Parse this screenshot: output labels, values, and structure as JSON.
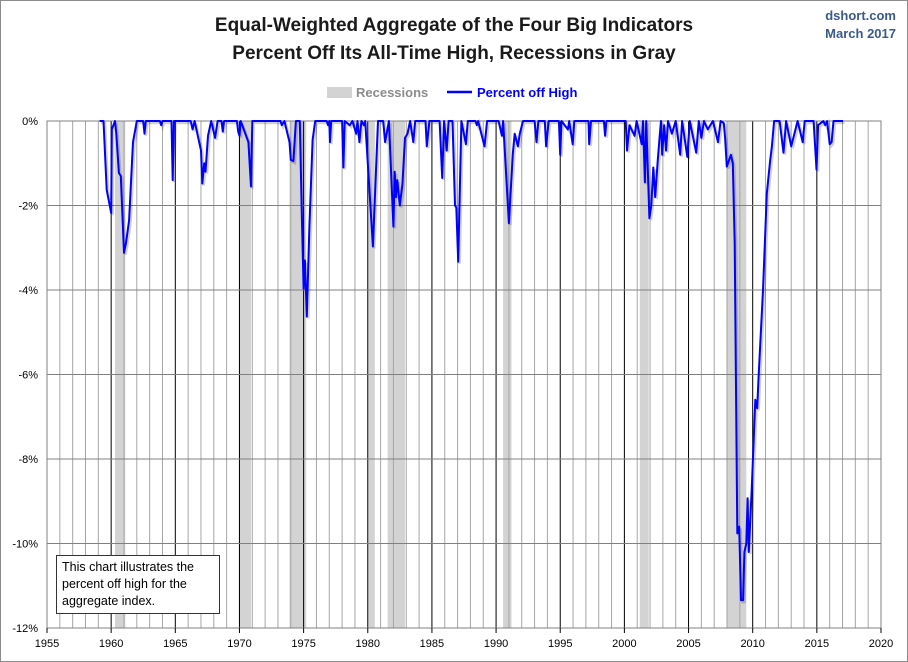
{
  "chart_data": {
    "type": "line",
    "title": "Equal-Weighted Aggregate of the Four Big Indicators",
    "subtitle": "Percent Off Its All-Time High, Recessions in Gray",
    "source": "dshort.com",
    "date": "March 2017",
    "note": "This chart illustrates the percent off high for the aggregate index.",
    "legend": {
      "placement": "top-center",
      "recessions_label": "Recessions",
      "series_label": "Percent off High"
    },
    "colors": {
      "series": "#0000ff",
      "recession": "#d3d3d3",
      "grid": "#a6a6a6",
      "major_grid": "#000000",
      "source": "#3a5a8c"
    },
    "xlim": [
      1955,
      2020
    ],
    "ylim": [
      -12,
      0
    ],
    "x_ticks": [
      1955,
      1960,
      1965,
      1970,
      1975,
      1980,
      1985,
      1990,
      1995,
      2000,
      2005,
      2010,
      2015,
      2020
    ],
    "y_ticks": [
      0,
      -2,
      -4,
      -6,
      -8,
      -10,
      -12
    ],
    "y_tick_labels": [
      "0%",
      "-2%",
      "-4%",
      "-6%",
      "-8%",
      "-10%",
      "-12%"
    ],
    "grid": true,
    "recessions": [
      [
        1960.3,
        1961.1
      ],
      [
        1969.95,
        1970.9
      ],
      [
        1973.9,
        1975.2
      ],
      [
        1980.05,
        1980.55
      ],
      [
        1981.55,
        1982.9
      ],
      [
        1990.55,
        1991.2
      ],
      [
        2001.2,
        2001.9
      ],
      [
        2007.95,
        2009.5
      ]
    ],
    "series": [
      {
        "name": "Percent off High",
        "points": [
          [
            1959.1,
            0
          ],
          [
            1959.4,
            0
          ],
          [
            1959.65,
            -1.63
          ],
          [
            1960.0,
            -2.18
          ],
          [
            1960.05,
            -0.2
          ],
          [
            1960.3,
            0
          ],
          [
            1960.4,
            -0.3
          ],
          [
            1960.6,
            -1.23
          ],
          [
            1960.75,
            -1.3
          ],
          [
            1961.0,
            -3.12
          ],
          [
            1961.15,
            -2.9
          ],
          [
            1961.4,
            -2.35
          ],
          [
            1961.7,
            -0.5
          ],
          [
            1962.0,
            0
          ],
          [
            1962.5,
            0
          ],
          [
            1962.6,
            -0.3
          ],
          [
            1962.7,
            0
          ],
          [
            1963.8,
            0
          ],
          [
            1963.9,
            -0.1
          ],
          [
            1964.0,
            0
          ],
          [
            1964.7,
            0
          ],
          [
            1964.8,
            -1.4
          ],
          [
            1964.9,
            0
          ],
          [
            1966.2,
            0
          ],
          [
            1966.35,
            -0.2
          ],
          [
            1966.5,
            0
          ],
          [
            1967.0,
            -0.7
          ],
          [
            1967.1,
            -1.48
          ],
          [
            1967.25,
            -1.0
          ],
          [
            1967.35,
            -1.2
          ],
          [
            1967.55,
            -0.35
          ],
          [
            1967.8,
            0
          ],
          [
            1968.1,
            -0.4
          ],
          [
            1968.3,
            0
          ],
          [
            1968.6,
            0
          ],
          [
            1968.7,
            -0.25
          ],
          [
            1968.8,
            0
          ],
          [
            1969.8,
            0
          ],
          [
            1969.9,
            -0.25
          ],
          [
            1970.0,
            -0.35
          ],
          [
            1970.1,
            0
          ],
          [
            1970.7,
            -0.5
          ],
          [
            1970.9,
            -1.55
          ],
          [
            1971.0,
            0
          ],
          [
            1973.2,
            0
          ],
          [
            1973.3,
            -0.1
          ],
          [
            1973.5,
            0
          ],
          [
            1973.9,
            -0.5
          ],
          [
            1974.0,
            -0.92
          ],
          [
            1974.2,
            -0.95
          ],
          [
            1974.4,
            0
          ],
          [
            1974.7,
            0
          ],
          [
            1974.85,
            -2.1
          ],
          [
            1975.0,
            -3.97
          ],
          [
            1975.1,
            -3.3
          ],
          [
            1975.25,
            -4.63
          ],
          [
            1975.45,
            -2.5
          ],
          [
            1975.7,
            -0.45
          ],
          [
            1975.9,
            0
          ],
          [
            1976.8,
            0
          ],
          [
            1976.9,
            -0.1
          ],
          [
            1977.0,
            0
          ],
          [
            1977.06,
            -0.5
          ],
          [
            1977.15,
            0
          ],
          [
            1978.0,
            0
          ],
          [
            1978.1,
            -1.1
          ],
          [
            1978.2,
            0
          ],
          [
            1978.6,
            -0.1
          ],
          [
            1978.8,
            0
          ],
          [
            1979.1,
            -0.3
          ],
          [
            1979.2,
            0
          ],
          [
            1979.35,
            -0.5
          ],
          [
            1979.5,
            0
          ],
          [
            1979.7,
            -0.1
          ],
          [
            1979.8,
            0
          ],
          [
            1980.4,
            -2.97
          ],
          [
            1980.8,
            0
          ],
          [
            1981.2,
            0
          ],
          [
            1981.35,
            -0.5
          ],
          [
            1981.65,
            0
          ],
          [
            1982.0,
            -2.5
          ],
          [
            1982.1,
            -1.2
          ],
          [
            1982.2,
            -1.8
          ],
          [
            1982.3,
            -1.4
          ],
          [
            1982.5,
            -2.0
          ],
          [
            1982.7,
            -1.5
          ],
          [
            1982.9,
            -0.4
          ],
          [
            1983.1,
            -0.3
          ],
          [
            1983.3,
            0
          ],
          [
            1983.55,
            -0.5
          ],
          [
            1983.7,
            0
          ],
          [
            1984.5,
            0
          ],
          [
            1984.6,
            -0.6
          ],
          [
            1984.8,
            0
          ],
          [
            1985.6,
            0
          ],
          [
            1985.8,
            -1.35
          ],
          [
            1985.95,
            0
          ],
          [
            1986.15,
            -0.7
          ],
          [
            1986.3,
            0
          ],
          [
            1986.6,
            0
          ],
          [
            1986.8,
            -2.0
          ],
          [
            1986.9,
            -2.05
          ],
          [
            1987.05,
            -3.33
          ],
          [
            1987.3,
            0
          ],
          [
            1987.65,
            -0.55
          ],
          [
            1987.8,
            0
          ],
          [
            1988.4,
            0
          ],
          [
            1988.5,
            -0.1
          ],
          [
            1988.6,
            0
          ],
          [
            1989.1,
            -0.6
          ],
          [
            1989.3,
            0
          ],
          [
            1990.2,
            0
          ],
          [
            1990.45,
            -0.35
          ],
          [
            1990.55,
            0
          ],
          [
            1991.0,
            -2.42
          ],
          [
            1991.3,
            -0.78
          ],
          [
            1991.45,
            -0.3
          ],
          [
            1991.7,
            -0.6
          ],
          [
            1991.85,
            -0.3
          ],
          [
            1992.1,
            0
          ],
          [
            1993.0,
            0
          ],
          [
            1993.15,
            -0.5
          ],
          [
            1993.3,
            0
          ],
          [
            1993.8,
            0
          ],
          [
            1993.9,
            -0.6
          ],
          [
            1994.1,
            0
          ],
          [
            1994.9,
            0
          ],
          [
            1995.0,
            -0.8
          ],
          [
            1995.1,
            0
          ],
          [
            1995.6,
            -0.2
          ],
          [
            1995.7,
            0
          ],
          [
            1995.97,
            -0.55
          ],
          [
            1996.1,
            0
          ],
          [
            1997.2,
            0
          ],
          [
            1997.26,
            -0.55
          ],
          [
            1997.4,
            0
          ],
          [
            1998.4,
            0
          ],
          [
            1998.5,
            -0.35
          ],
          [
            1998.6,
            0
          ],
          [
            2000.1,
            0
          ],
          [
            2000.2,
            -0.7
          ],
          [
            2000.4,
            -0.1
          ],
          [
            2000.8,
            -0.35
          ],
          [
            2000.95,
            0
          ],
          [
            2001.35,
            -0.55
          ],
          [
            2001.45,
            0
          ],
          [
            2001.6,
            -1.45
          ],
          [
            2001.7,
            0
          ],
          [
            2001.95,
            -2.3
          ],
          [
            2002.1,
            -2.0
          ],
          [
            2002.25,
            -1.1
          ],
          [
            2002.4,
            -1.8
          ],
          [
            2002.6,
            -0.95
          ],
          [
            2002.75,
            -0.35
          ],
          [
            2002.85,
            0
          ],
          [
            2002.95,
            -0.8
          ],
          [
            2003.1,
            -0.1
          ],
          [
            2003.25,
            -0.7
          ],
          [
            2003.4,
            0
          ],
          [
            2003.7,
            -0.3
          ],
          [
            2004.0,
            0
          ],
          [
            2004.35,
            -0.8
          ],
          [
            2004.5,
            0
          ],
          [
            2004.9,
            -0.85
          ],
          [
            2005.1,
            0
          ],
          [
            2005.6,
            -0.75
          ],
          [
            2005.8,
            0
          ],
          [
            2006.0,
            -0.4
          ],
          [
            2006.2,
            0
          ],
          [
            2006.5,
            -0.2
          ],
          [
            2006.9,
            0
          ],
          [
            2007.3,
            -0.5
          ],
          [
            2007.5,
            0
          ],
          [
            2007.75,
            -0.05
          ],
          [
            2007.85,
            -0.4
          ],
          [
            2007.98,
            -1.08
          ],
          [
            2008.3,
            -0.8
          ],
          [
            2008.45,
            -1.0
          ],
          [
            2008.6,
            -2.9
          ],
          [
            2008.8,
            -9.76
          ],
          [
            2008.95,
            -9.6
          ],
          [
            2009.09,
            -11.34
          ],
          [
            2009.25,
            -11.34
          ],
          [
            2009.35,
            -10.2
          ],
          [
            2009.5,
            -10.0
          ],
          [
            2009.6,
            -8.93
          ],
          [
            2009.7,
            -10.2
          ],
          [
            2009.92,
            -8.73
          ],
          [
            2010.2,
            -6.6
          ],
          [
            2010.35,
            -6.8
          ],
          [
            2010.45,
            -6.1
          ],
          [
            2010.8,
            -4.0
          ],
          [
            2011.1,
            -1.72
          ],
          [
            2011.35,
            -0.97
          ],
          [
            2011.5,
            -0.6
          ],
          [
            2011.67,
            0
          ],
          [
            2012.1,
            0
          ],
          [
            2012.4,
            -0.75
          ],
          [
            2012.6,
            0
          ],
          [
            2013.0,
            -0.6
          ],
          [
            2013.25,
            -0.3
          ],
          [
            2013.5,
            0
          ],
          [
            2013.9,
            -0.5
          ],
          [
            2014.05,
            0
          ],
          [
            2014.75,
            0
          ],
          [
            2014.97,
            -1.15
          ],
          [
            2015.1,
            -0.1
          ],
          [
            2015.5,
            0
          ],
          [
            2015.65,
            -0.1
          ],
          [
            2015.8,
            0
          ],
          [
            2016.0,
            -0.55
          ],
          [
            2016.15,
            -0.5
          ],
          [
            2016.3,
            0
          ],
          [
            2017.05,
            0
          ]
        ]
      }
    ]
  }
}
